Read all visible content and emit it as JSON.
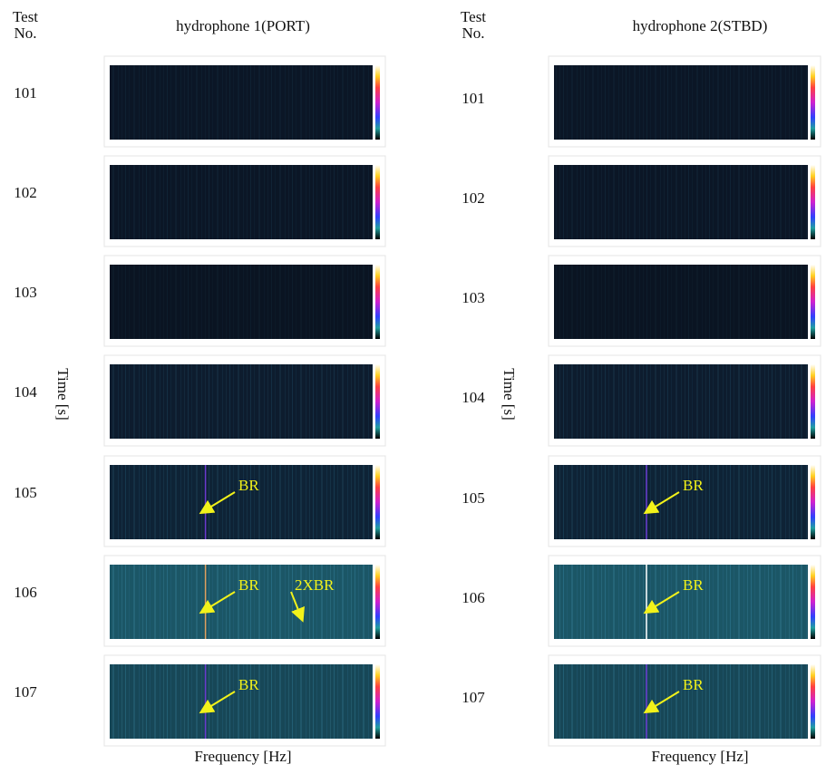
{
  "columns": [
    {
      "test_no_header": "Test No.",
      "title": "hydrophone 1(PORT)",
      "y_label": "Time [s]",
      "x_label": "Frequency [Hz]",
      "rows": [
        {
          "test_no": "101"
        },
        {
          "test_no": "102"
        },
        {
          "test_no": "103"
        },
        {
          "test_no": "104"
        },
        {
          "test_no": "105",
          "annotations": [
            "BR"
          ]
        },
        {
          "test_no": "106",
          "annotations": [
            "BR",
            "2XBR"
          ]
        },
        {
          "test_no": "107",
          "annotations": [
            "BR"
          ]
        }
      ]
    },
    {
      "test_no_header": "Test No.",
      "title": "hydrophone 2(STBD)",
      "y_label": "Time [s]",
      "x_label": "Frequency [Hz]",
      "rows": [
        {
          "test_no": "101"
        },
        {
          "test_no": "102"
        },
        {
          "test_no": "103"
        },
        {
          "test_no": "104"
        },
        {
          "test_no": "105",
          "annotations": [
            "BR"
          ]
        },
        {
          "test_no": "106",
          "annotations": [
            "BR"
          ]
        },
        {
          "test_no": "107",
          "annotations": [
            "BR"
          ]
        }
      ]
    }
  ]
}
